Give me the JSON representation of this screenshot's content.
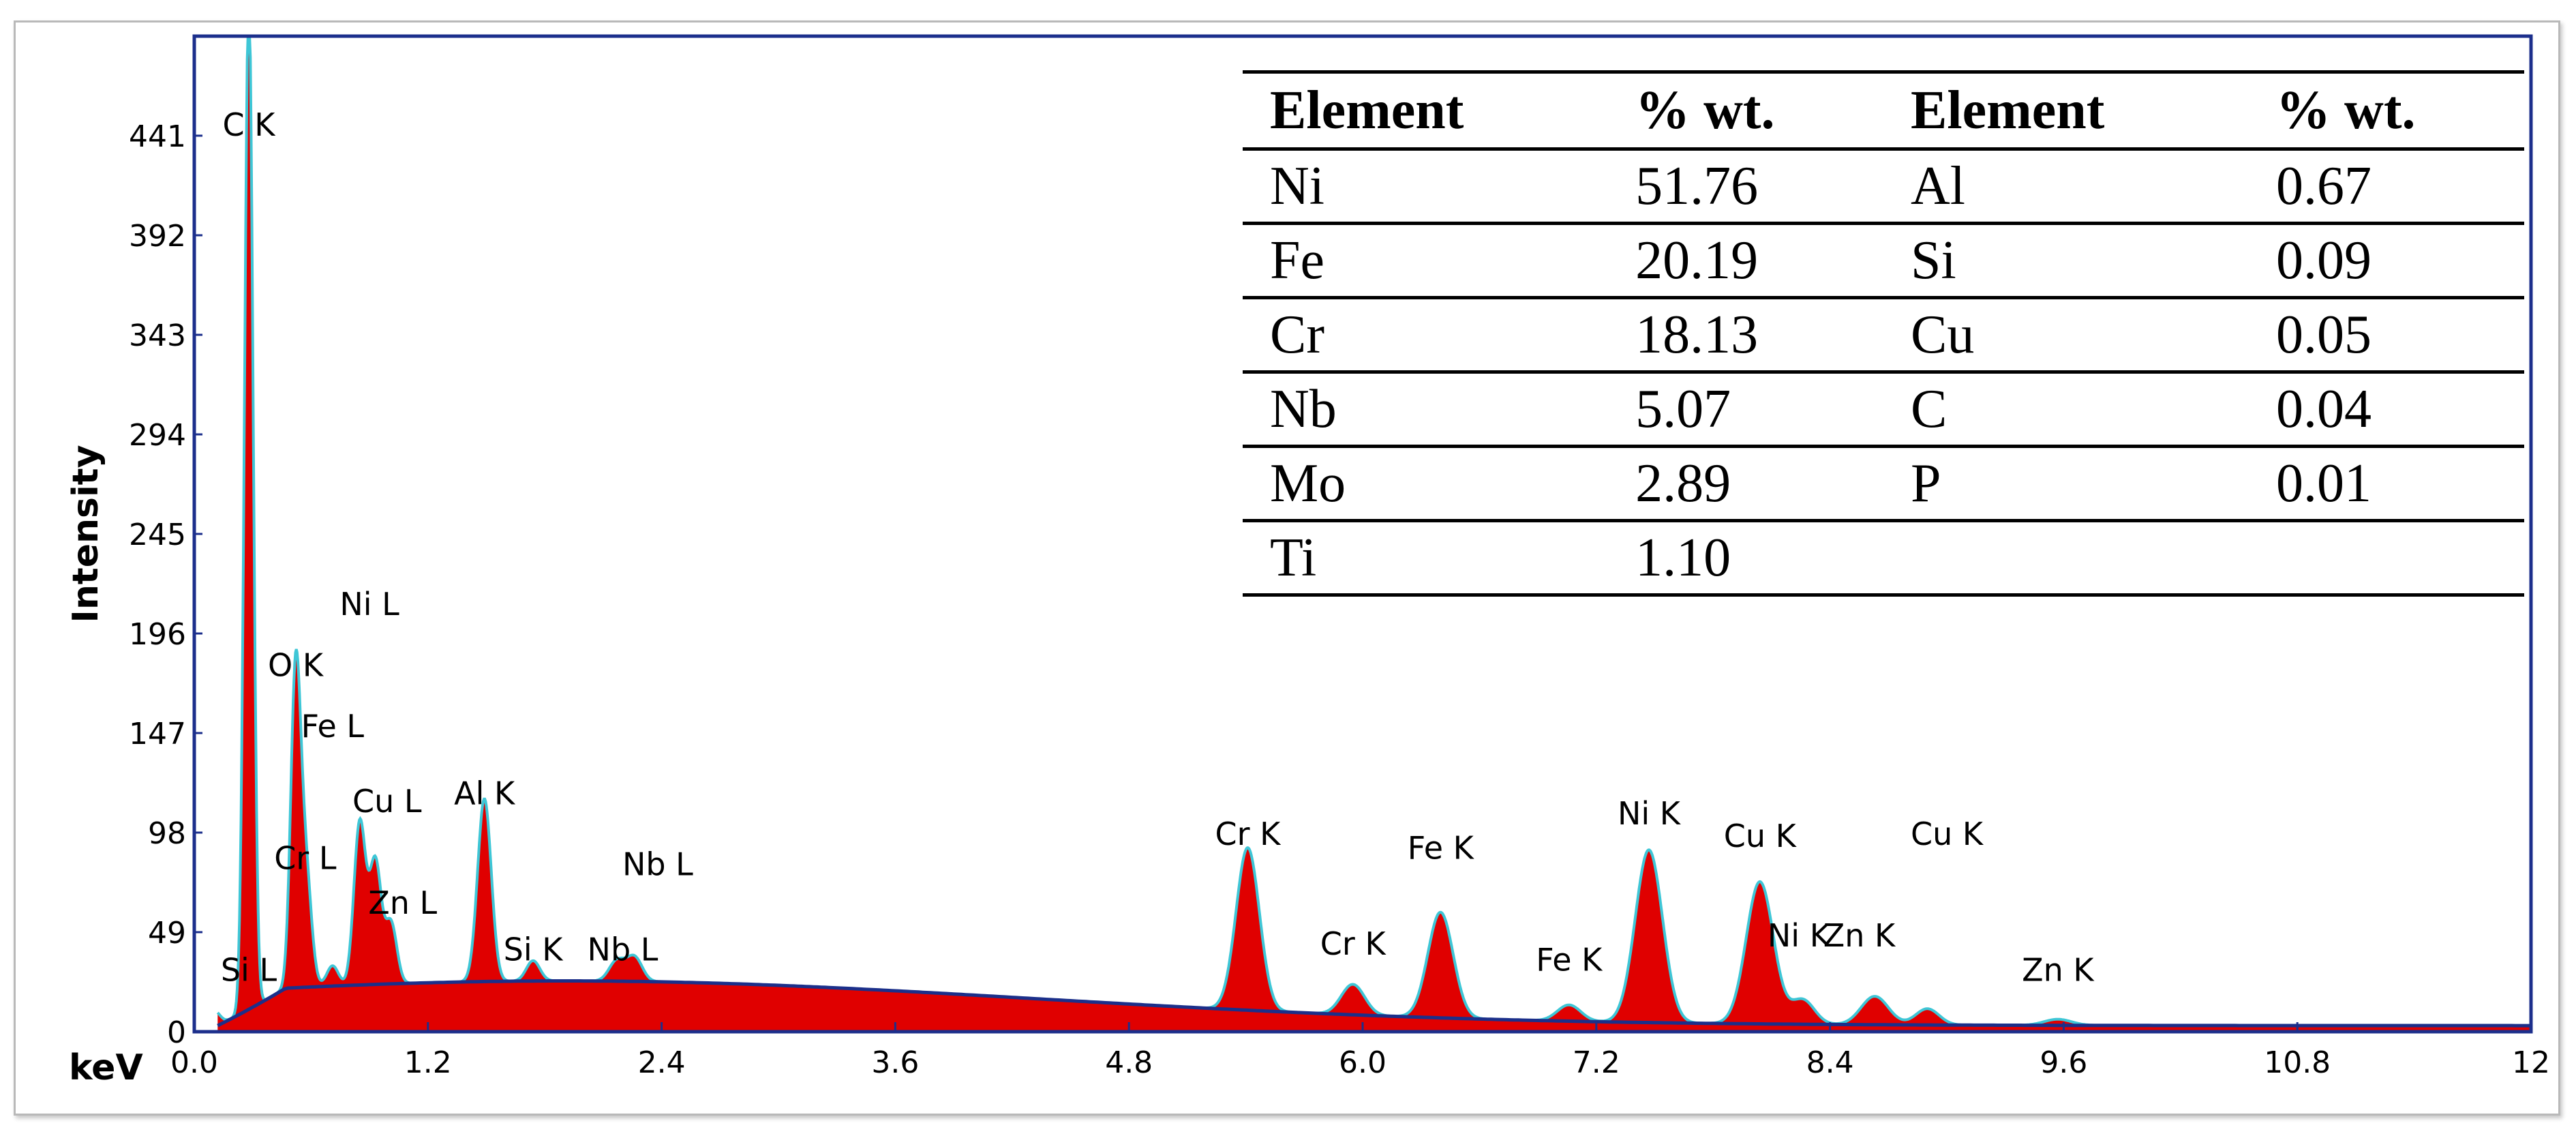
{
  "chart_data": {
    "type": "line",
    "xlabel": "keV",
    "ylabel": "Intensity",
    "xlim": [
      0,
      12
    ],
    "ylim": [
      0,
      490
    ],
    "x_ticks": [
      "0.0",
      "1.2",
      "2.4",
      "3.6",
      "4.8",
      "6.0",
      "7.2",
      "8.4",
      "9.6",
      "10.8",
      "12"
    ],
    "y_ticks": [
      "0",
      "49",
      "98",
      "147",
      "196",
      "245",
      "294",
      "343",
      "392",
      "441"
    ],
    "colors": {
      "spectrum_fill": "#e00000",
      "spectrum_outline": "#3ec6d6",
      "background_curve": "#1b2f8a",
      "axis": "#1c2f8c"
    },
    "peaks": [
      {
        "label": "C K",
        "x": 0.28,
        "y": 500,
        "width": 0.022,
        "label_x": 0.28,
        "label_y": 441
      },
      {
        "label": "O K",
        "x": 0.52,
        "y": 150,
        "width": 0.025,
        "label_x": 0.52,
        "label_y": 175
      },
      {
        "label": "Ni L",
        "x": 0.85,
        "y": 80,
        "width": 0.03,
        "label_x": 0.9,
        "label_y": 205
      },
      {
        "label": "Fe L",
        "x": 0.71,
        "y": 10,
        "width": 0.03,
        "label_x": 0.71,
        "label_y": 145
      },
      {
        "label": "Cu L",
        "x": 0.93,
        "y": 60,
        "width": 0.03,
        "label_x": 0.99,
        "label_y": 108
      },
      {
        "label": "Cr L",
        "x": 0.57,
        "y": 60,
        "width": 0.03,
        "label_x": 0.57,
        "label_y": 80
      },
      {
        "label": "Zn L",
        "x": 1.01,
        "y": 30,
        "width": 0.03,
        "label_x": 1.07,
        "label_y": 58
      },
      {
        "label": "Al K",
        "x": 1.49,
        "y": 90,
        "width": 0.035,
        "label_x": 1.49,
        "label_y": 112
      },
      {
        "label": "Si K",
        "x": 1.74,
        "y": 10,
        "width": 0.035,
        "label_x": 1.74,
        "label_y": 35
      },
      {
        "label": "Si L",
        "x": 0.1,
        "y": 8,
        "width": 0.03,
        "label_x": 0.28,
        "label_y": 25
      },
      {
        "label": "Nb L",
        "x": 2.17,
        "y": 10,
        "width": 0.04,
        "label_x": 2.2,
        "label_y": 35
      },
      {
        "label": "Nb L",
        "x": 2.26,
        "y": 12,
        "width": 0.04,
        "label_x": 2.38,
        "label_y": 77
      },
      {
        "label": "Cr K",
        "x": 5.41,
        "y": 80,
        "width": 0.06,
        "label_x": 5.41,
        "label_y": 92
      },
      {
        "label": "Cr K",
        "x": 5.95,
        "y": 15,
        "width": 0.06,
        "label_x": 5.95,
        "label_y": 38
      },
      {
        "label": "Fe K",
        "x": 6.4,
        "y": 52,
        "width": 0.065,
        "label_x": 6.4,
        "label_y": 85
      },
      {
        "label": "Fe K",
        "x": 7.06,
        "y": 8,
        "width": 0.06,
        "label_x": 7.06,
        "label_y": 30
      },
      {
        "label": "Ni K",
        "x": 7.47,
        "y": 85,
        "width": 0.07,
        "label_x": 7.47,
        "label_y": 102
      },
      {
        "label": "Cu K",
        "x": 8.04,
        "y": 70,
        "width": 0.07,
        "label_x": 8.04,
        "label_y": 91
      },
      {
        "label": "Ni K",
        "x": 8.26,
        "y": 12,
        "width": 0.06,
        "label_x": 8.24,
        "label_y": 42
      },
      {
        "label": "Zn K",
        "x": 8.63,
        "y": 14,
        "width": 0.07,
        "label_x": 8.55,
        "label_y": 42
      },
      {
        "label": "Cu K",
        "x": 8.9,
        "y": 8,
        "width": 0.06,
        "label_x": 9.0,
        "label_y": 92
      },
      {
        "label": "Zn K",
        "x": 9.57,
        "y": 3,
        "width": 0.07,
        "label_x": 9.57,
        "label_y": 25
      }
    ]
  },
  "composition_table": {
    "headers": [
      "Element",
      "% wt.",
      "Element",
      "% wt."
    ],
    "rows": [
      [
        "Ni",
        "51.76",
        "Al",
        "0.67"
      ],
      [
        "Fe",
        "20.19",
        "Si",
        "0.09"
      ],
      [
        "Cr",
        "18.13",
        "Cu",
        "0.05"
      ],
      [
        "Nb",
        "5.07",
        "C",
        "0.04"
      ],
      [
        "Mo",
        "2.89",
        "P",
        "0.01"
      ],
      [
        "Ti",
        "1.10",
        "",
        ""
      ]
    ]
  }
}
